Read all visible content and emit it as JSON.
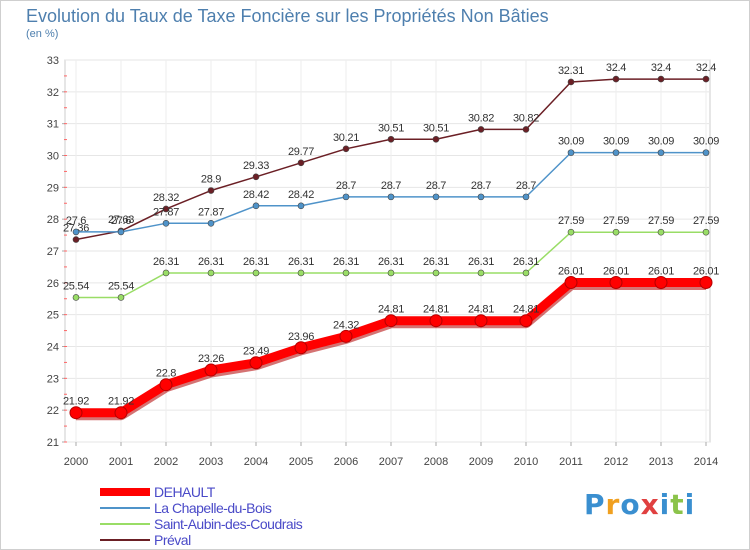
{
  "header": {
    "title": "Evolution du Taux de Taxe Foncière sur les Propriétés Non Bâties",
    "unit": "(en %)"
  },
  "chart_data": {
    "type": "line",
    "title": "Evolution du Taux de Taxe Foncière sur les Propriétés Non Bâties",
    "ylabel": "(en %)",
    "xlabel": "",
    "ylim": [
      21,
      33
    ],
    "yticks": [
      21,
      22,
      23,
      24,
      25,
      26,
      27,
      28,
      29,
      30,
      31,
      32,
      33
    ],
    "categories": [
      "2000",
      "2001",
      "2002",
      "2003",
      "2004",
      "2005",
      "2006",
      "2007",
      "2008",
      "2009",
      "2010",
      "2011",
      "2012",
      "2013",
      "2014"
    ],
    "grid": true,
    "legend_position": "bottom-left",
    "series": [
      {
        "name": "DEHAULT",
        "color": "#ff0000",
        "values": [
          21.92,
          21.92,
          22.8,
          23.26,
          23.49,
          23.96,
          24.32,
          24.81,
          24.81,
          24.81,
          24.81,
          26.01,
          26.01,
          26.01,
          26.01
        ],
        "labels": [
          "21.92",
          "21.92",
          "22.8",
          "23.26",
          "23.49",
          "23.96",
          "24.32",
          "24.81",
          "24.81",
          "24.81",
          "24.81",
          "26.01",
          "26.01",
          "26.01",
          "26.01"
        ]
      },
      {
        "name": "La Chapelle-du-Bois",
        "color": "#4f93c9",
        "values": [
          27.6,
          27.6,
          27.87,
          27.87,
          28.42,
          28.42,
          28.7,
          28.7,
          28.7,
          28.7,
          28.7,
          30.09,
          30.09,
          30.09,
          30.09
        ],
        "labels": [
          "27.6",
          "27.6",
          "27.87",
          "27.87",
          "28.42",
          "28.42",
          "28.7",
          "28.7",
          "28.7",
          "28.7",
          "28.7",
          "30.09",
          "30.09",
          "30.09",
          "30.09"
        ]
      },
      {
        "name": "Saint-Aubin-des-Coudrais",
        "color": "#99dd66",
        "values": [
          25.54,
          25.54,
          26.31,
          26.31,
          26.31,
          26.31,
          26.31,
          26.31,
          26.31,
          26.31,
          26.31,
          27.59,
          27.59,
          27.59,
          27.59
        ],
        "labels": [
          "25.54",
          "25.54",
          "26.31",
          "26.31",
          "26.31",
          "26.31",
          "26.31",
          "26.31",
          "26.31",
          "26.31",
          "26.31",
          "27.59",
          "27.59",
          "27.59",
          "27.59"
        ]
      },
      {
        "name": "Préval",
        "color": "#6b1f25",
        "values": [
          27.36,
          27.63,
          28.32,
          28.9,
          29.33,
          29.77,
          30.21,
          30.51,
          30.51,
          30.82,
          30.82,
          32.31,
          32.4,
          32.4,
          32.4
        ],
        "labels": [
          "27.36",
          "27.63",
          "28.32",
          "28.9",
          "29.33",
          "29.77",
          "30.21",
          "30.51",
          "30.51",
          "30.82",
          "30.82",
          "32.31",
          "32.4",
          "32.4",
          "32.4"
        ]
      }
    ]
  },
  "legend": {
    "items": [
      {
        "label": "DEHAULT",
        "color": "#ff0000"
      },
      {
        "label": "La Chapelle-du-Bois",
        "color": "#4f93c9"
      },
      {
        "label": "Saint-Aubin-des-Coudrais",
        "color": "#99dd66"
      },
      {
        "label": "Préval",
        "color": "#6b1f25"
      }
    ]
  },
  "logo": {
    "letters": [
      "P",
      "r",
      "o",
      "x",
      "i",
      "t",
      "i"
    ],
    "colors": [
      "#3a8fd0",
      "#f0a020",
      "#3a8fd0",
      "#e04040",
      "#3a8fd0",
      "#8bc34a",
      "#3a8fd0"
    ]
  }
}
